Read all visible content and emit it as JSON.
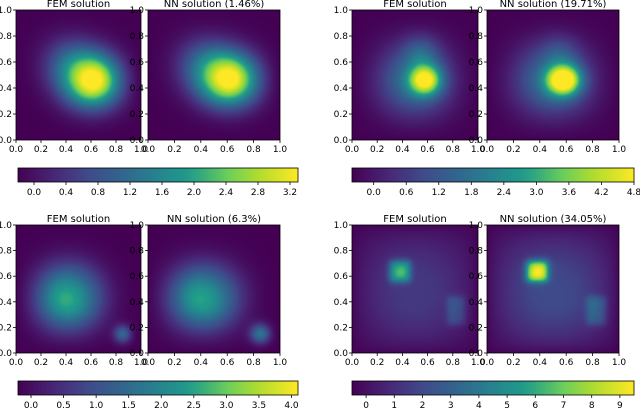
{
  "chart_data": [
    {
      "type": "heatmap",
      "title": "FEM solution",
      "xlim": [
        0,
        1
      ],
      "ylim": [
        0,
        1
      ],
      "xticks": [
        "0.0",
        "0.2",
        "0.4",
        "0.6",
        "0.8",
        "1.0"
      ],
      "yticks": [
        "0.0",
        "0.2",
        "0.4",
        "0.6",
        "0.8",
        "1.0"
      ],
      "colormap": "viridis",
      "value_range": [
        0,
        3.3
      ],
      "blobs": [
        {
          "x": 0.63,
          "y": 0.45,
          "sx": 0.17,
          "sy": 0.15,
          "amp": 3.3
        },
        {
          "x": 0.42,
          "y": 0.6,
          "sx": 0.17,
          "sy": 0.16,
          "amp": 0.9
        }
      ]
    },
    {
      "type": "heatmap",
      "title": "NN solution (1.46%)",
      "xlim": [
        0,
        1
      ],
      "ylim": [
        0,
        1
      ],
      "xticks": [
        "0.0",
        "0.2",
        "0.4",
        "0.6",
        "0.8",
        "1.0"
      ],
      "yticks": [
        "0.0",
        "0.2",
        "0.4",
        "0.6",
        "0.8",
        "1.0"
      ],
      "colormap": "viridis",
      "value_range": [
        0,
        3.3
      ],
      "blobs": [
        {
          "x": 0.63,
          "y": 0.46,
          "sx": 0.17,
          "sy": 0.15,
          "amp": 3.25
        },
        {
          "x": 0.42,
          "y": 0.6,
          "sx": 0.17,
          "sy": 0.16,
          "amp": 0.9
        }
      ]
    },
    {
      "type": "heatmap",
      "title": "FEM solution",
      "xlim": [
        0,
        1
      ],
      "ylim": [
        0,
        1
      ],
      "xticks": [
        "0.0",
        "0.2",
        "0.4",
        "0.6",
        "0.8",
        "1.0"
      ],
      "yticks": [
        "0.0",
        "0.2",
        "0.4",
        "0.6",
        "0.8",
        "1.0"
      ],
      "colormap": "viridis",
      "value_range": [
        0,
        4.8
      ],
      "blobs": [
        {
          "x": 0.58,
          "y": 0.46,
          "sx": 0.09,
          "sy": 0.08,
          "amp": 3.6
        },
        {
          "x": 0.5,
          "y": 0.45,
          "sx": 0.24,
          "sy": 0.22,
          "amp": 1.9
        },
        {
          "x": 0.55,
          "y": 0.68,
          "sx": 0.1,
          "sy": 0.1,
          "amp": 0.9
        }
      ]
    },
    {
      "type": "heatmap",
      "title": "NN solution (19.71%)",
      "xlim": [
        0,
        1
      ],
      "ylim": [
        0,
        1
      ],
      "xticks": [
        "0.0",
        "0.2",
        "0.4",
        "0.6",
        "0.8",
        "1.0"
      ],
      "yticks": [
        "0.0",
        "0.2",
        "0.4",
        "0.6",
        "0.8",
        "1.0"
      ],
      "colormap": "viridis",
      "value_range": [
        0,
        4.8
      ],
      "blobs": [
        {
          "x": 0.58,
          "y": 0.46,
          "sx": 0.09,
          "sy": 0.08,
          "amp": 4.4
        },
        {
          "x": 0.5,
          "y": 0.45,
          "sx": 0.24,
          "sy": 0.22,
          "amp": 1.9
        },
        {
          "x": 0.55,
          "y": 0.68,
          "sx": 0.1,
          "sy": 0.1,
          "amp": 0.6
        }
      ]
    },
    {
      "type": "heatmap",
      "title": "FEM solution",
      "xlim": [
        0,
        1
      ],
      "ylim": [
        0,
        1
      ],
      "xticks": [
        "0.0",
        "0.2",
        "0.4",
        "0.6",
        "0.8",
        "1.0"
      ],
      "yticks": [
        "0.0",
        "0.2",
        "0.4",
        "0.6",
        "0.8",
        "1.0"
      ],
      "colormap": "viridis",
      "value_range": [
        0,
        4.1
      ],
      "blobs": [
        {
          "x": 0.4,
          "y": 0.42,
          "sx": 0.2,
          "sy": 0.19,
          "amp": 2.7
        },
        {
          "x": 0.86,
          "y": 0.14,
          "sx": 0.05,
          "sy": 0.05,
          "amp": 3.1
        }
      ]
    },
    {
      "type": "heatmap",
      "title": "NN solution (6.3%)",
      "xlim": [
        0,
        1
      ],
      "ylim": [
        0,
        1
      ],
      "xticks": [
        "0.0",
        "0.2",
        "0.4",
        "0.6",
        "0.8",
        "1.0"
      ],
      "yticks": [
        "0.0",
        "0.2",
        "0.4",
        "0.6",
        "0.8",
        "1.0"
      ],
      "colormap": "viridis",
      "value_range": [
        0,
        4.1
      ],
      "blobs": [
        {
          "x": 0.4,
          "y": 0.42,
          "sx": 0.2,
          "sy": 0.19,
          "amp": 2.6
        },
        {
          "x": 0.86,
          "y": 0.14,
          "sx": 0.055,
          "sy": 0.055,
          "amp": 3.6
        }
      ]
    },
    {
      "type": "heatmap",
      "title": "FEM solution",
      "xlim": [
        0,
        1
      ],
      "ylim": [
        0,
        1
      ],
      "xticks": [
        "0.0",
        "0.2",
        "0.4",
        "0.6",
        "0.8",
        "1.0"
      ],
      "yticks": [
        "0.0",
        "0.2",
        "0.4",
        "0.6",
        "0.8",
        "1.0"
      ],
      "colormap": "viridis",
      "value_range": [
        0,
        9.5
      ],
      "base": 1.2,
      "rects": [
        {
          "x0": 0.3,
          "x1": 0.46,
          "y0": 0.56,
          "y1": 0.72,
          "amp": 4.3
        },
        {
          "x0": 0.76,
          "x1": 0.9,
          "y0": 0.22,
          "y1": 0.44,
          "amp": 2.2
        }
      ],
      "blobs": [
        {
          "x": 0.38,
          "y": 0.64,
          "sx": 0.05,
          "sy": 0.05,
          "amp": 0.9
        },
        {
          "x": 0.5,
          "y": 0.45,
          "sx": 0.3,
          "sy": 0.3,
          "amp": 0.6
        }
      ]
    },
    {
      "type": "heatmap",
      "title": "NN solution (34.05%)",
      "xlim": [
        0,
        1
      ],
      "ylim": [
        0,
        1
      ],
      "xticks": [
        "0.0",
        "0.2",
        "0.4",
        "0.6",
        "0.8",
        "1.0"
      ],
      "yticks": [
        "0.0",
        "0.2",
        "0.4",
        "0.6",
        "0.8",
        "1.0"
      ],
      "colormap": "viridis",
      "value_range": [
        0,
        9.5
      ],
      "base": 1.5,
      "rects": [
        {
          "x0": 0.3,
          "x1": 0.46,
          "y0": 0.56,
          "y1": 0.72,
          "amp": 6.2
        },
        {
          "x0": 0.76,
          "x1": 0.9,
          "y0": 0.22,
          "y1": 0.44,
          "amp": 2.8
        }
      ],
      "blobs": [
        {
          "x": 0.38,
          "y": 0.64,
          "sx": 0.05,
          "sy": 0.05,
          "amp": 1.4
        },
        {
          "x": 0.5,
          "y": 0.45,
          "sx": 0.3,
          "sy": 0.3,
          "amp": 0.9
        }
      ]
    },
    {
      "type": "colorbar",
      "colormap": "viridis",
      "range": [
        -0.2,
        3.3
      ],
      "ticks": [
        0.0,
        0.4,
        0.8,
        1.2,
        1.6,
        2.0,
        2.4,
        2.8,
        3.2
      ],
      "tick_labels": [
        "0.0",
        "0.4",
        "0.8",
        "1.2",
        "1.6",
        "2.0",
        "2.4",
        "2.8",
        "3.2"
      ]
    },
    {
      "type": "colorbar",
      "colormap": "viridis",
      "range": [
        -0.4,
        4.8
      ],
      "ticks": [
        0.0,
        0.6,
        1.2,
        1.8,
        2.4,
        3.0,
        3.6,
        4.2,
        4.8
      ],
      "tick_labels": [
        "0.0",
        "0.6",
        "1.2",
        "1.8",
        "2.4",
        "3.0",
        "3.6",
        "4.2",
        "4.8"
      ]
    },
    {
      "type": "colorbar",
      "colormap": "viridis",
      "range": [
        -0.2,
        4.1
      ],
      "ticks": [
        0.0,
        0.5,
        1.0,
        1.5,
        2.0,
        2.5,
        3.0,
        3.5,
        4.0
      ],
      "tick_labels": [
        "0.0",
        "0.5",
        "1.0",
        "1.5",
        "2.0",
        "2.5",
        "3.0",
        "3.5",
        "4.0"
      ]
    },
    {
      "type": "colorbar",
      "colormap": "viridis",
      "range": [
        -0.5,
        9.5
      ],
      "ticks": [
        0,
        1,
        2,
        3,
        4,
        5,
        6,
        7,
        8,
        9
      ],
      "tick_labels": [
        "0",
        "1",
        "2",
        "3",
        "4",
        "5",
        "6",
        "7",
        "8",
        "9"
      ]
    }
  ]
}
